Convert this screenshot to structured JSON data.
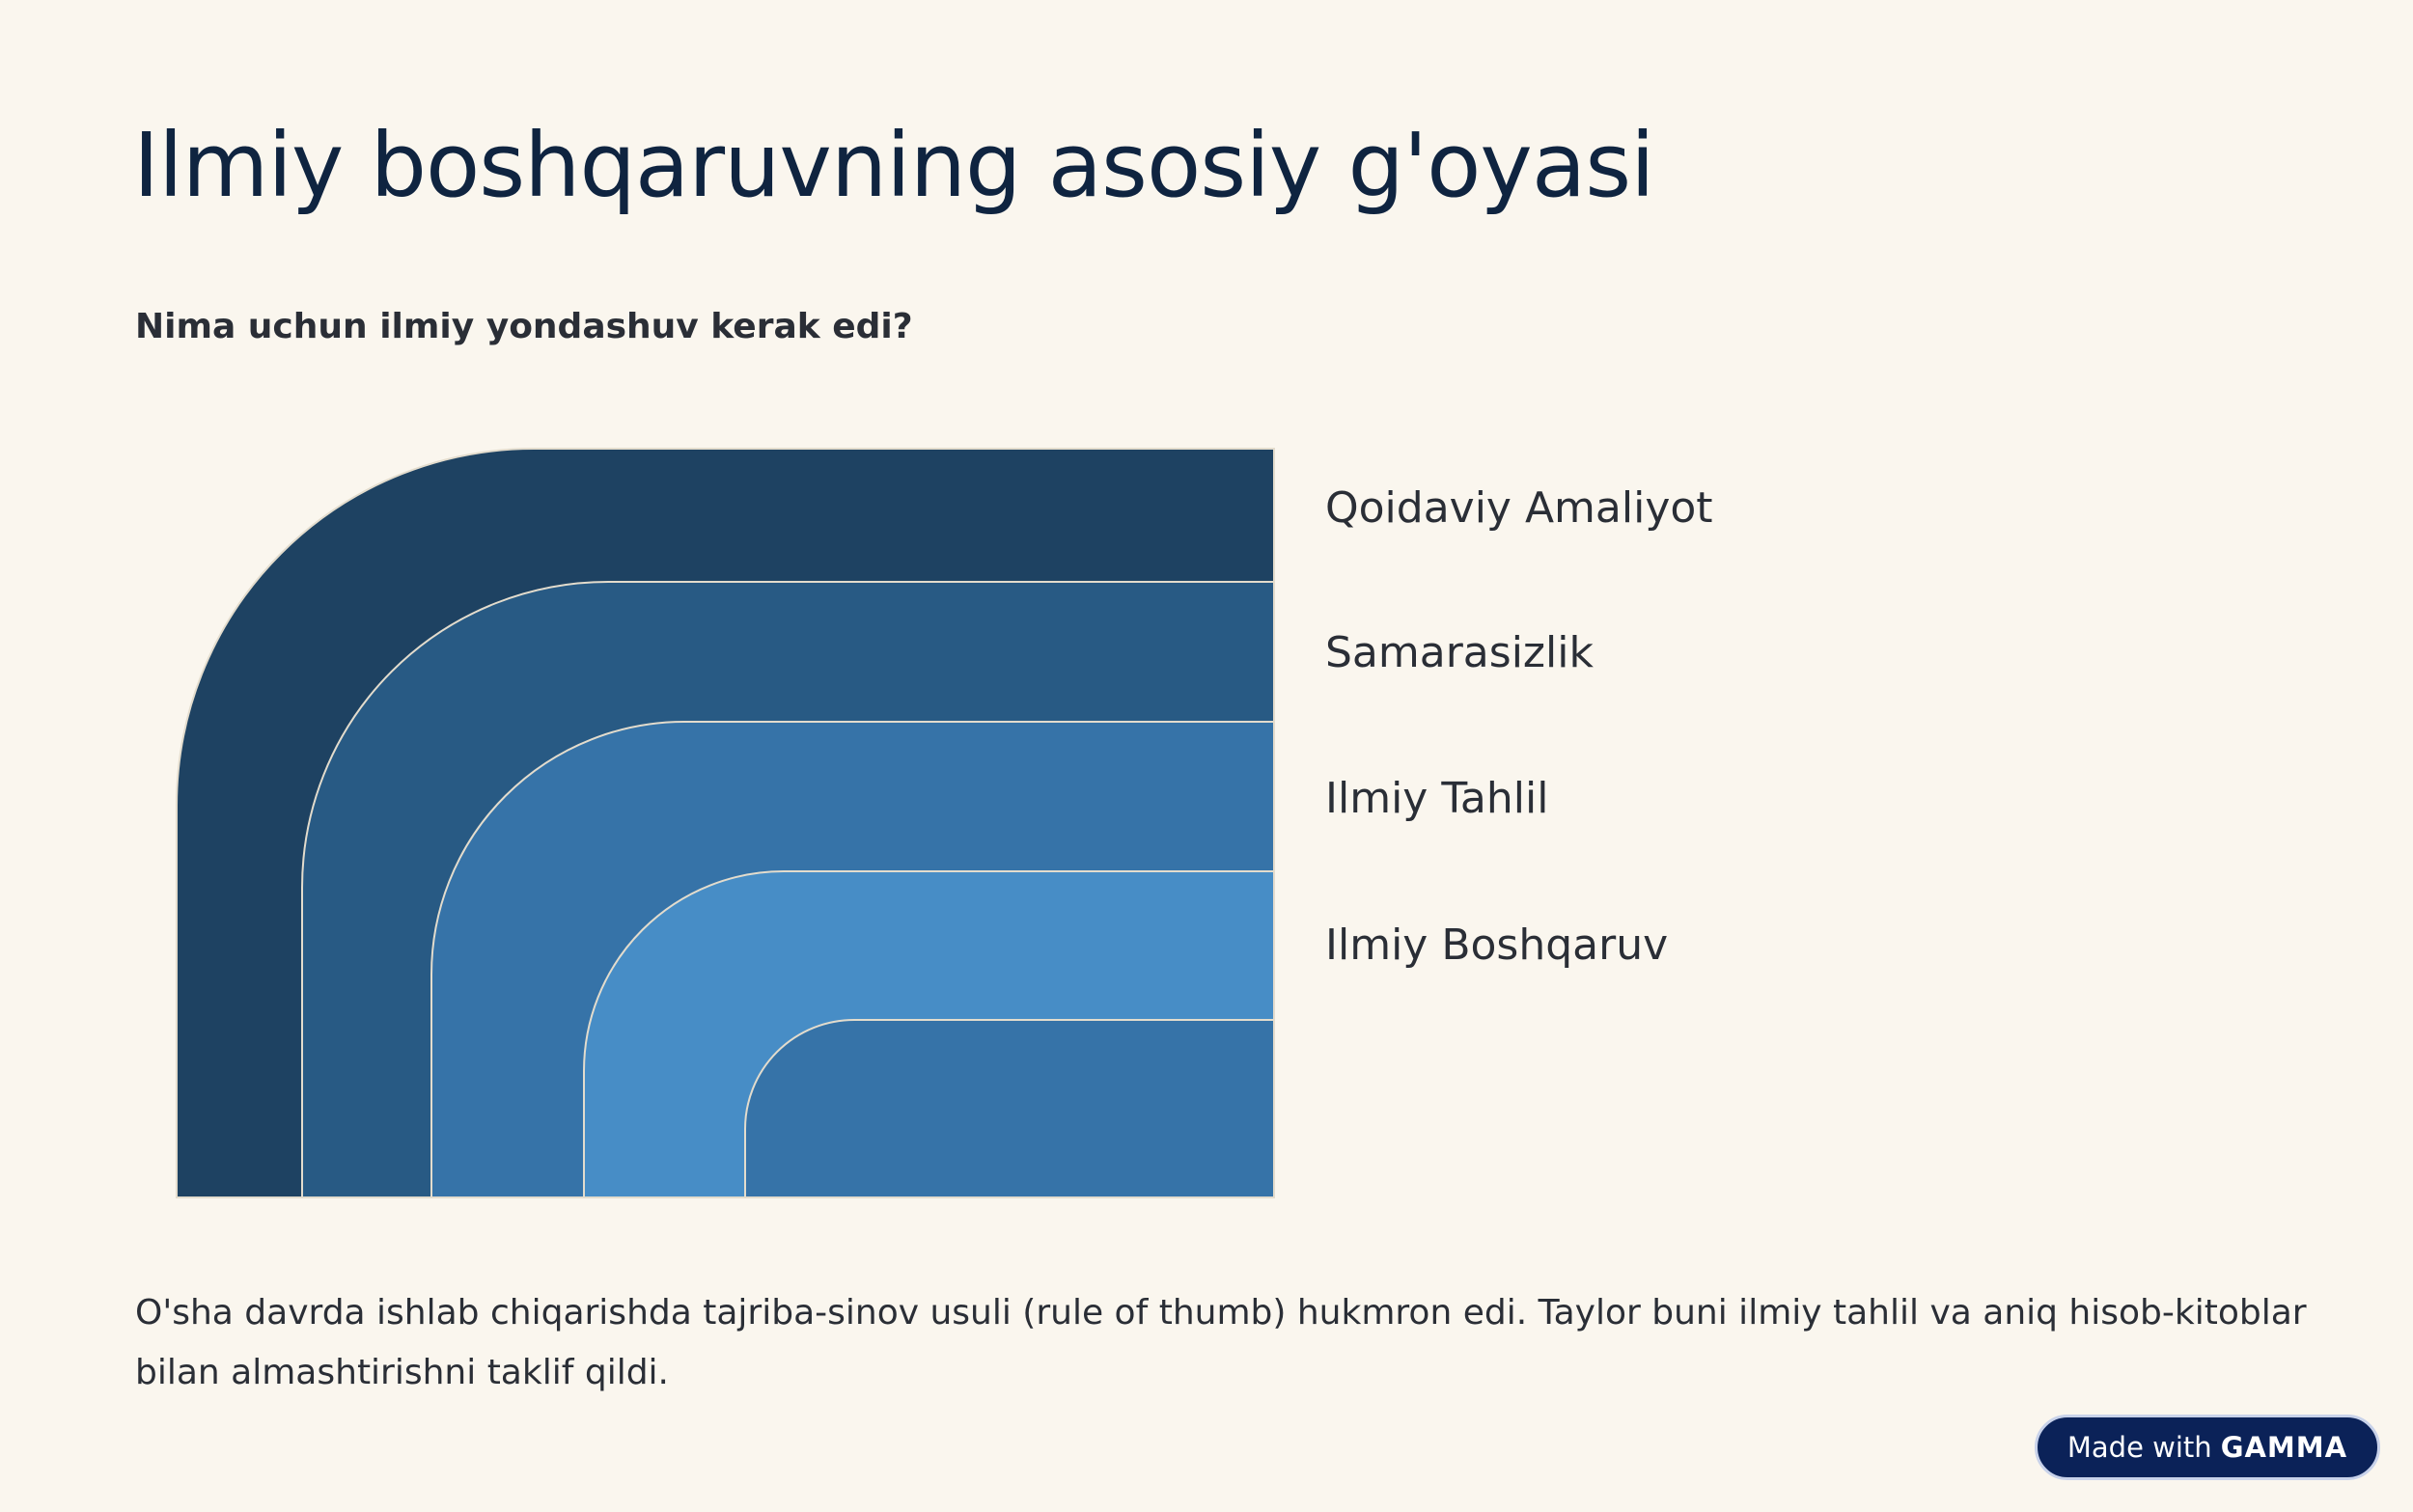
{
  "slide": {
    "title": "Ilmiy boshqaruvning asosiy g'oyasi",
    "subtitle": "Nima uchun ilmiy yondashuv kerak edi?",
    "body": "O'sha davrda ishlab chiqarishda tajriba-sinov usuli (rule of thumb) hukmron edi. Taylor buni ilmiy tahlil va aniq hisob-kitoblar bilan almashtirishni taklif qildi."
  },
  "diagram": {
    "layers": [
      {
        "label": "Qoidaviy Amaliyot",
        "color": "#1e4262"
      },
      {
        "label": "Samarasizlik",
        "color": "#285a84"
      },
      {
        "label": "Ilmiy Tahlil",
        "color": "#3673a8"
      },
      {
        "label": "Ilmiy Boshqaruv",
        "color": "#478dc6"
      }
    ]
  },
  "badge": {
    "prefix": "Made with",
    "brand": "GAMMA"
  }
}
